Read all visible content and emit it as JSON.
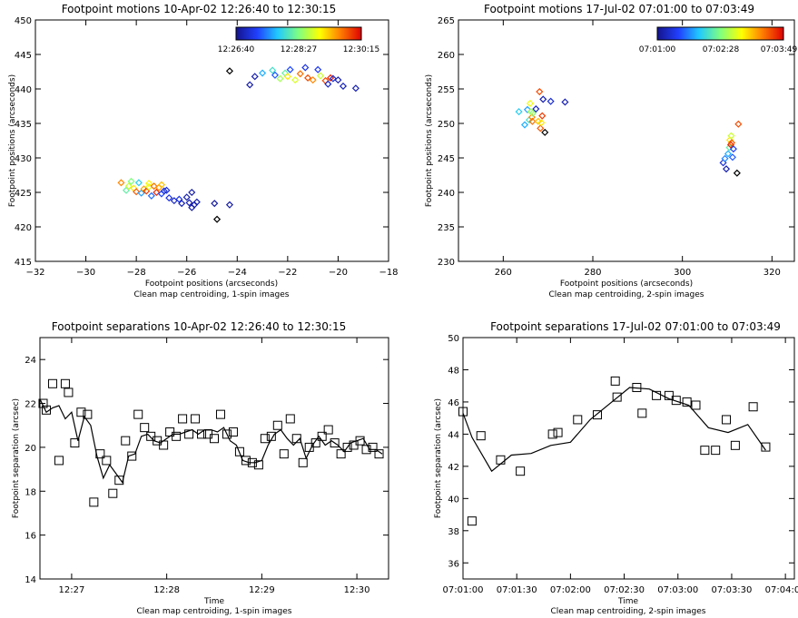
{
  "chart_data": [
    {
      "type": "scatter",
      "title": "Footpoint motions 10-Apr-02 12:26:40 to 12:30:15",
      "xlabel": "Footpoint positions (arcseconds)",
      "subtitle": "Clean map centroiding, 1-spin images",
      "ylabel": "Footpoint positions (arcseconds)",
      "xlim": [
        -32,
        -18
      ],
      "ylim": [
        415,
        450
      ],
      "xticks": [
        -32,
        -30,
        -28,
        -26,
        -24,
        -22,
        -20,
        -18
      ],
      "xtick_labels": [
        "−32",
        "−30",
        "−28",
        "−26",
        "−24",
        "−22",
        "−20",
        "−18"
      ],
      "yticks": [
        415,
        420,
        425,
        430,
        435,
        440,
        445,
        450
      ],
      "ytick_labels": [
        "415",
        "420",
        "425",
        "430",
        "435",
        "440",
        "445",
        "450"
      ],
      "marker": "diamond",
      "colorbar": {
        "labels": [
          "12:26:40",
          "12:28:27",
          "12:30:15"
        ],
        "location": "top-right"
      },
      "series": [
        {
          "points": [
            [
              -28.6,
              426.4,
              0.82
            ],
            [
              -28.4,
              425.3,
              0.45
            ],
            [
              -28.3,
              425.9,
              0.6
            ],
            [
              -28.2,
              426.6,
              0.5
            ],
            [
              -28.1,
              425.6,
              0.7
            ],
            [
              -28.0,
              425.1,
              0.88
            ],
            [
              -27.9,
              426.4,
              0.35
            ],
            [
              -27.8,
              424.9,
              0.28
            ],
            [
              -27.7,
              425.5,
              0.78
            ],
            [
              -27.6,
              425.2,
              0.92
            ],
            [
              -27.5,
              425.8,
              0.62
            ],
            [
              -27.4,
              424.5,
              0.22
            ],
            [
              -27.3,
              425.9,
              0.85
            ],
            [
              -27.2,
              425.0,
              0.95
            ],
            [
              -27.1,
              425.7,
              0.8
            ],
            [
              -27.0,
              424.8,
              0.18
            ],
            [
              -26.9,
              425.2,
              0.12
            ],
            [
              -27.5,
              426.3,
              0.68
            ],
            [
              -27.0,
              426.1,
              0.75
            ],
            [
              -26.8,
              425.3,
              0.1
            ],
            [
              -26.7,
              424.2,
              0.12
            ],
            [
              -26.5,
              423.8,
              0.08
            ],
            [
              -26.3,
              424.0,
              0.13
            ],
            [
              -26.2,
              423.4,
              0.06
            ],
            [
              -26.0,
              424.3,
              0.05
            ],
            [
              -25.9,
              423.5,
              0.05
            ],
            [
              -25.8,
              422.8,
              0.04
            ],
            [
              -25.7,
              423.2,
              0.04
            ],
            [
              -25.6,
              423.6,
              0.05
            ],
            [
              -25.8,
              425.0,
              0.04
            ],
            [
              -24.9,
              423.4,
              0.03
            ],
            [
              -24.3,
              423.2,
              0.04
            ],
            [
              -24.8,
              421.1,
              0.0
            ],
            [
              -24.3,
              442.6,
              0.0
            ],
            [
              -23.5,
              440.6,
              0.04
            ],
            [
              -23.3,
              441.8,
              0.05
            ],
            [
              -23.0,
              442.3,
              0.3
            ],
            [
              -22.6,
              442.7,
              0.4
            ],
            [
              -22.5,
              442.0,
              0.2
            ],
            [
              -22.3,
              441.5,
              0.55
            ],
            [
              -22.1,
              442.3,
              0.45
            ],
            [
              -22.0,
              441.8,
              0.7
            ],
            [
              -21.9,
              442.8,
              0.18
            ],
            [
              -21.7,
              441.3,
              0.62
            ],
            [
              -21.5,
              442.2,
              0.85
            ],
            [
              -21.3,
              443.1,
              0.12
            ],
            [
              -21.2,
              441.6,
              0.9
            ],
            [
              -21.0,
              441.3,
              0.82
            ],
            [
              -20.8,
              442.8,
              0.15
            ],
            [
              -20.7,
              441.9,
              0.6
            ],
            [
              -20.5,
              441.2,
              0.9
            ],
            [
              -20.3,
              441.6,
              0.95
            ],
            [
              -20.2,
              441.5,
              0.1
            ],
            [
              -20.0,
              441.3,
              0.05
            ],
            [
              -20.4,
              440.7,
              0.08
            ],
            [
              -19.8,
              440.4,
              0.06
            ],
            [
              -19.3,
              440.1,
              0.05
            ]
          ]
        }
      ]
    },
    {
      "type": "scatter",
      "title": "Footpoint motions 17-Jul-02 07:01:00 to 07:03:49",
      "xlabel": "Footpoint positions (arcseconds)",
      "subtitle": "Clean map centroiding, 2-spin images",
      "ylabel": "Footpoint positions (arcseconds)",
      "xlim": [
        250,
        325
      ],
      "ylim": [
        230,
        265
      ],
      "xticks": [
        260,
        280,
        300,
        320
      ],
      "xtick_labels": [
        "260",
        "280",
        "300",
        "320"
      ],
      "yticks": [
        230,
        235,
        240,
        245,
        250,
        255,
        260,
        265
      ],
      "ytick_labels": [
        "230",
        "235",
        "240",
        "245",
        "250",
        "255",
        "260",
        "265"
      ],
      "marker": "diamond",
      "colorbar": {
        "labels": [
          "07:01:00",
          "07:02:28",
          "07:03:49"
        ],
        "location": "top-right"
      },
      "series": [
        {
          "points": [
            [
              263.5,
              251.7,
              0.35
            ],
            [
              264.8,
              249.8,
              0.3
            ],
            [
              265.4,
              252.0,
              0.28
            ],
            [
              265.8,
              250.5,
              0.4
            ],
            [
              266.0,
              252.9,
              0.65
            ],
            [
              266.4,
              250.9,
              0.82
            ],
            [
              266.6,
              251.5,
              0.5
            ],
            [
              266.2,
              251.7,
              0.55
            ],
            [
              266.5,
              250.3,
              0.85
            ],
            [
              267.3,
              252.1,
              0.08
            ],
            [
              267.8,
              250.3,
              0.75
            ],
            [
              268.1,
              254.6,
              0.9
            ],
            [
              268.3,
              249.3,
              0.88
            ],
            [
              268.7,
              251.1,
              0.92
            ],
            [
              268.9,
              253.5,
              0.05
            ],
            [
              269.3,
              248.7,
              0.0
            ],
            [
              270.6,
              253.2,
              0.1
            ],
            [
              273.8,
              253.1,
              0.05
            ],
            [
              268.5,
              250.1,
              0.7
            ],
            [
              309.1,
              244.3,
              0.1
            ],
            [
              309.8,
              243.4,
              0.05
            ],
            [
              309.5,
              244.9,
              0.25
            ],
            [
              310.2,
              245.6,
              0.3
            ],
            [
              310.5,
              246.5,
              0.45
            ],
            [
              310.6,
              247.6,
              0.7
            ],
            [
              310.8,
              246.9,
              0.95
            ],
            [
              310.9,
              248.2,
              0.6
            ],
            [
              311.0,
              247.2,
              0.88
            ],
            [
              311.2,
              245.1,
              0.2
            ],
            [
              311.4,
              246.3,
              0.15
            ],
            [
              312.5,
              249.9,
              0.9
            ],
            [
              312.2,
              242.8,
              0.0
            ]
          ]
        }
      ]
    },
    {
      "type": "line",
      "title": "Footpoint separations 10-Apr-02 12:26:40 to 12:30:15",
      "xlabel": "Time",
      "subtitle": "Clean map centroiding, 1-spin images",
      "ylabel": "Footpoint separation (arcsec)",
      "xlim": [
        "12:26:40",
        "12:30:20"
      ],
      "ylim": [
        14,
        25
      ],
      "xticks": [
        "12:27",
        "12:28",
        "12:29",
        "12:30"
      ],
      "yticks": [
        14,
        16,
        18,
        20,
        22,
        24
      ],
      "ytick_labels": [
        "14",
        "16",
        "18",
        "20",
        "22",
        "24"
      ],
      "series": [
        {
          "name": "",
          "style": "squares",
          "x": [
            "12:26:42",
            "12:26:44",
            "12:26:48",
            "12:26:52",
            "12:26:56",
            "12:26:58",
            "12:27:02",
            "12:27:06",
            "12:27:10",
            "12:27:14",
            "12:27:18",
            "12:27:22",
            "12:27:26",
            "12:27:30",
            "12:27:34",
            "12:27:38",
            "12:27:42",
            "12:27:46",
            "12:27:50",
            "12:27:54",
            "12:27:58",
            "12:28:02",
            "12:28:06",
            "12:28:10",
            "12:28:14",
            "12:28:18",
            "12:28:22",
            "12:28:26",
            "12:28:30",
            "12:28:34",
            "12:28:38",
            "12:28:42",
            "12:28:46",
            "12:28:50",
            "12:28:54",
            "12:28:58",
            "12:29:02",
            "12:29:06",
            "12:29:10",
            "12:29:14",
            "12:29:18",
            "12:29:22",
            "12:29:26",
            "12:29:30",
            "12:29:34",
            "12:29:38",
            "12:29:42",
            "12:29:46",
            "12:29:50",
            "12:29:54",
            "12:29:58",
            "12:30:02",
            "12:30:06",
            "12:30:10",
            "12:30:14"
          ],
          "values": [
            22.0,
            21.7,
            22.9,
            19.4,
            22.9,
            22.5,
            20.2,
            21.6,
            21.5,
            17.5,
            19.7,
            19.4,
            17.9,
            18.5,
            20.3,
            19.6,
            21.5,
            20.9,
            20.5,
            20.3,
            20.1,
            20.7,
            20.5,
            21.3,
            20.6,
            21.3,
            20.6,
            20.6,
            20.4,
            21.5,
            20.6,
            20.7,
            19.8,
            19.4,
            19.3,
            19.2,
            20.4,
            20.5,
            21.0,
            19.7,
            21.3,
            20.4,
            19.3,
            20.0,
            20.2,
            20.5,
            20.8,
            20.2,
            19.7,
            20.0,
            20.1,
            20.3,
            19.9,
            20.0,
            19.7
          ]
        },
        {
          "name": "",
          "style": "line",
          "x": [
            "12:26:40",
            "12:26:44",
            "12:26:48",
            "12:26:52",
            "12:26:56",
            "12:27:00",
            "12:27:04",
            "12:27:08",
            "12:27:12",
            "12:27:16",
            "12:27:20",
            "12:27:24",
            "12:27:28",
            "12:27:32",
            "12:27:36",
            "12:27:40",
            "12:27:44",
            "12:27:48",
            "12:27:52",
            "12:27:56",
            "12:28:00",
            "12:28:04",
            "12:28:08",
            "12:28:12",
            "12:28:16",
            "12:28:20",
            "12:28:24",
            "12:28:28",
            "12:28:32",
            "12:28:36",
            "12:28:40",
            "12:28:44",
            "12:28:48",
            "12:28:52",
            "12:28:56",
            "12:29:00",
            "12:29:04",
            "12:29:08",
            "12:29:12",
            "12:29:16",
            "12:29:20",
            "12:29:24",
            "12:29:28",
            "12:29:32",
            "12:29:36",
            "12:29:40",
            "12:29:44",
            "12:29:48",
            "12:29:52",
            "12:29:56",
            "12:30:00",
            "12:30:04",
            "12:30:08",
            "12:30:12",
            "12:30:16"
          ],
          "values": [
            22.2,
            21.6,
            21.8,
            21.9,
            21.3,
            21.6,
            20.3,
            21.4,
            21.0,
            19.6,
            18.6,
            19.2,
            18.8,
            18.4,
            19.6,
            19.7,
            20.5,
            20.6,
            20.3,
            20.2,
            20.4,
            20.6,
            20.6,
            20.7,
            20.8,
            20.6,
            20.8,
            20.8,
            20.7,
            20.9,
            20.3,
            20.1,
            19.4,
            19.3,
            19.3,
            19.4,
            20.1,
            20.6,
            20.8,
            20.4,
            20.1,
            20.4,
            19.5,
            20.1,
            20.5,
            20.1,
            20.3,
            20.1,
            19.8,
            20.2,
            20.3,
            20.4,
            19.9,
            19.9,
            19.7
          ]
        }
      ]
    },
    {
      "type": "line",
      "title": "Footpoint separations 17-Jul-02 07:01:00 to 07:03:49",
      "xlabel": "Time",
      "subtitle": "Clean map centroiding, 2-spin images",
      "ylabel": "Footpoint separation (arcsec)",
      "xlim": [
        "07:01:00",
        "07:04:05"
      ],
      "ylim": [
        35,
        50
      ],
      "xticks": [
        "07:01:00",
        "07:01:30",
        "07:02:00",
        "07:02:30",
        "07:03:00",
        "07:03:30",
        "07:04:00"
      ],
      "yticks": [
        36,
        38,
        40,
        42,
        44,
        46,
        48,
        50
      ],
      "ytick_labels": [
        "36",
        "38",
        "40",
        "42",
        "44",
        "46",
        "48",
        "50"
      ],
      "series": [
        {
          "name": "",
          "style": "squares",
          "x": [
            "07:01:00",
            "07:01:05",
            "07:01:10",
            "07:01:21",
            "07:01:32",
            "07:01:53",
            "07:02:04",
            "07:02:15",
            "07:02:26",
            "07:02:37",
            "07:02:48",
            "07:02:59",
            "07:03:10",
            "07:03:21",
            "07:03:32",
            "07:03:42",
            "07:03:49",
            "07:01:50",
            "07:02:40",
            "07:02:25",
            "07:02:55",
            "07:03:05",
            "07:03:15",
            "07:03:27"
          ],
          "values": [
            45.4,
            38.6,
            43.9,
            42.4,
            41.7,
            44.1,
            44.9,
            45.2,
            46.3,
            46.9,
            46.4,
            46.1,
            45.8,
            43.0,
            43.3,
            45.7,
            43.2,
            44.0,
            45.3,
            47.3,
            46.4,
            46.0,
            43.0,
            44.9
          ]
        },
        {
          "name": "",
          "style": "line",
          "x": [
            "07:01:00",
            "07:01:05",
            "07:01:16",
            "07:01:27",
            "07:01:38",
            "07:01:49",
            "07:02:00",
            "07:02:11",
            "07:02:22",
            "07:02:33",
            "07:02:44",
            "07:02:55",
            "07:03:06",
            "07:03:17",
            "07:03:28",
            "07:03:39",
            "07:03:49"
          ],
          "values": [
            45.3,
            43.8,
            41.7,
            42.7,
            42.8,
            43.3,
            43.5,
            44.9,
            45.9,
            46.9,
            46.8,
            46.2,
            45.8,
            44.4,
            44.1,
            44.6,
            43.0
          ]
        }
      ]
    }
  ]
}
